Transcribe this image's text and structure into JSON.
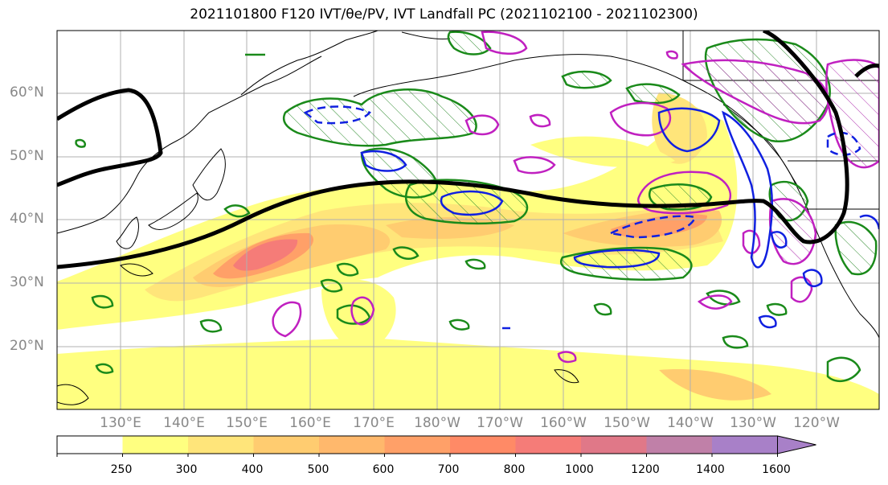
{
  "title": "2021101800 F120 IVT/θe/PV, IVT Landfall PC (2021102100 - 2021102300)",
  "lat_labels": [
    "60°N",
    "50°N",
    "40°N",
    "30°N",
    "20°N"
  ],
  "lon_labels": [
    "130°E",
    "140°E",
    "150°E",
    "160°E",
    "170°E",
    "180°W",
    "170°W",
    "160°W",
    "150°W",
    "140°W",
    "130°W",
    "120°W"
  ],
  "colorbar": {
    "ticks": [
      "250",
      "300",
      "400",
      "500",
      "600",
      "700",
      "800",
      "1000",
      "1200",
      "1400",
      "1600"
    ],
    "colors": [
      "#ffffff",
      "#ffff80",
      "#ffe57a",
      "#ffcc70",
      "#ffb86c",
      "#ffa068",
      "#ff8a66",
      "#f57c78",
      "#e07888",
      "#c080a8",
      "#a880c8"
    ]
  }
}
